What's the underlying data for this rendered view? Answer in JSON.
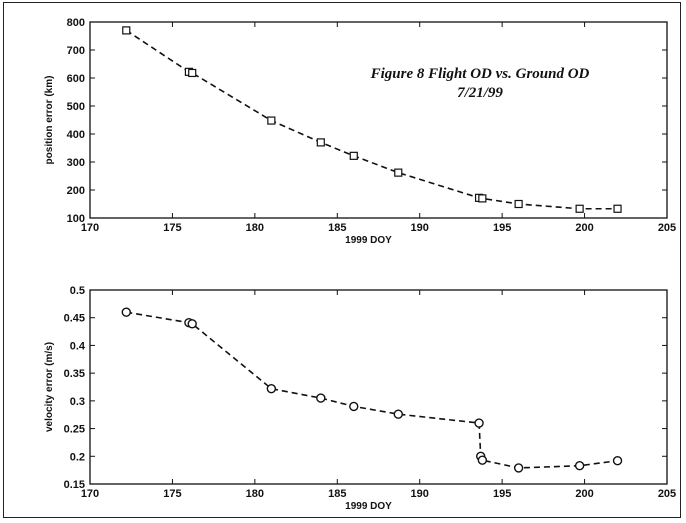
{
  "figure": {
    "title_line1": "Figure 8 Flight OD vs. Ground OD",
    "title_line2": "7/21/99"
  },
  "chart_data": [
    {
      "type": "line",
      "xlabel": "1999 DOY",
      "ylabel": "position error (km)",
      "xlim": [
        170,
        205
      ],
      "ylim": [
        100,
        800
      ],
      "xticks": [
        170,
        175,
        180,
        185,
        190,
        195,
        200,
        205
      ],
      "yticks": [
        100,
        200,
        300,
        400,
        500,
        600,
        700,
        800
      ],
      "grid": false,
      "line_style": "dashed",
      "marker": "square",
      "series": [
        {
          "x": [
            172.2,
            176.0,
            176.2,
            181.0,
            184.0,
            186.0,
            188.7,
            193.6,
            193.8,
            196.0,
            199.7,
            202.0
          ],
          "y": [
            770,
            622,
            618,
            448,
            370,
            322,
            262,
            172,
            170,
            150,
            133,
            133
          ]
        }
      ]
    },
    {
      "type": "line",
      "xlabel": "1999 DOY",
      "ylabel": "velocity error (m/s)",
      "xlim": [
        170,
        205
      ],
      "ylim": [
        0.15,
        0.5
      ],
      "xticks": [
        170,
        175,
        180,
        185,
        190,
        195,
        200,
        205
      ],
      "yticks": [
        0.15,
        0.2,
        0.25,
        0.3,
        0.35,
        0.4,
        0.45,
        0.5
      ],
      "grid": false,
      "line_style": "dashed",
      "marker": "circle",
      "series": [
        {
          "x": [
            172.2,
            176.0,
            176.2,
            181.0,
            184.0,
            186.0,
            188.7,
            193.6,
            193.7,
            193.8,
            196.0,
            199.7,
            202.0
          ],
          "y": [
            0.46,
            0.441,
            0.439,
            0.322,
            0.305,
            0.29,
            0.276,
            0.26,
            0.2,
            0.193,
            0.179,
            0.183,
            0.192
          ]
        }
      ]
    }
  ]
}
